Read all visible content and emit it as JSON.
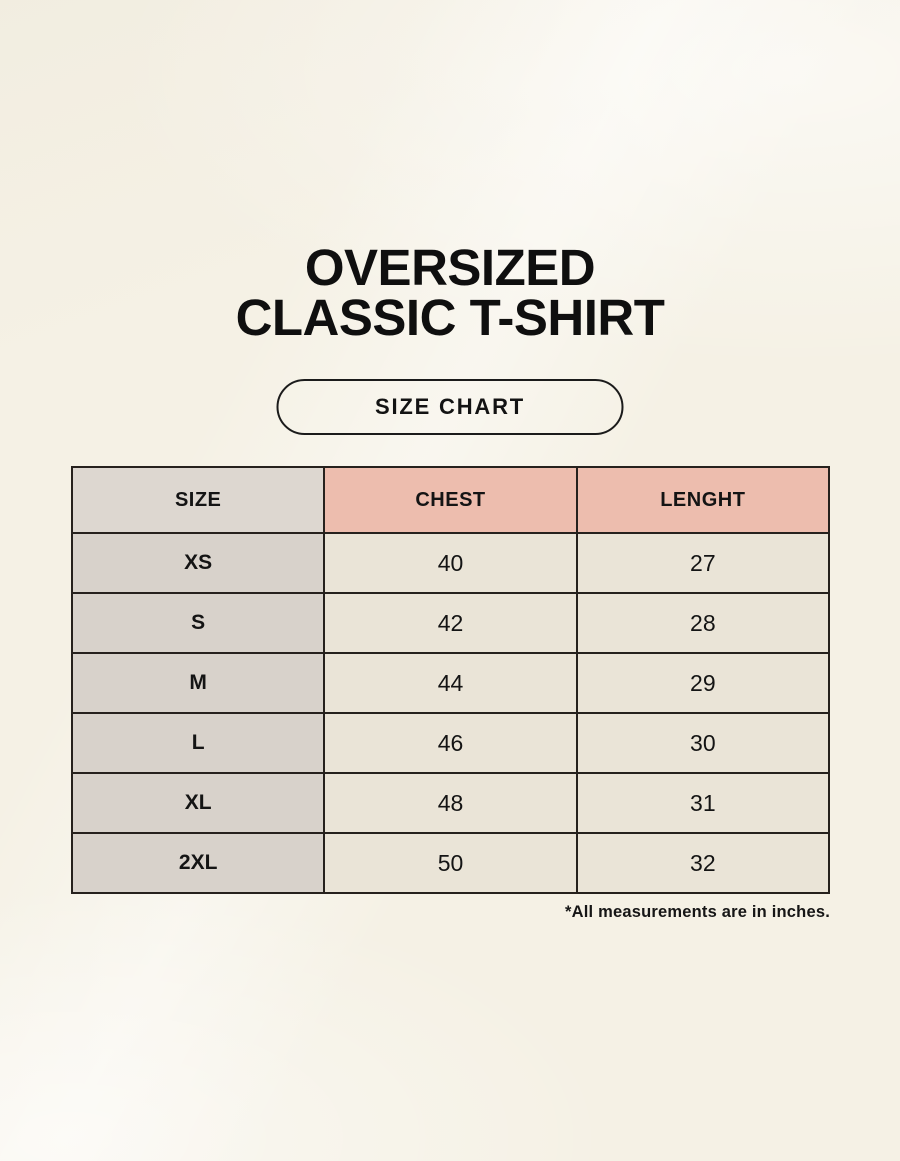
{
  "page": {
    "title_line1": "OVERSIZED",
    "title_line2": "CLASSIC T-SHIRT",
    "badge_label": "SIZE CHART",
    "footnote": "*All measurements are in inches."
  },
  "table": {
    "columns": [
      "SIZE",
      "CHEST",
      "LENGHT"
    ],
    "rows": [
      [
        "XS",
        "40",
        "27"
      ],
      [
        "S",
        "42",
        "28"
      ],
      [
        "M",
        "44",
        "29"
      ],
      [
        "L",
        "46",
        "30"
      ],
      [
        "XL",
        "48",
        "31"
      ],
      [
        "2XL",
        "50",
        "32"
      ]
    ],
    "units": "inches"
  },
  "colors": {
    "background": "#f5f1e5",
    "header_size_bg": "#ddd7d0",
    "header_measure_bg": "#edbdae",
    "size_col_bg": "#d8d2cb",
    "value_col_bg": "#eae4d7",
    "border": "#26211d",
    "text": "#141414"
  }
}
